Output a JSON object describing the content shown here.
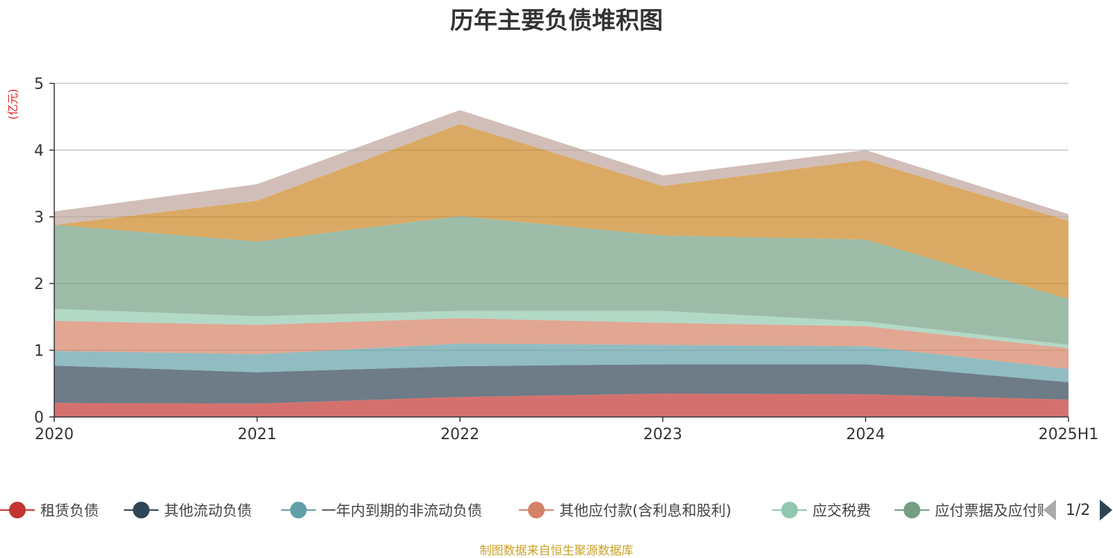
{
  "title": "历年主要负债堆积图",
  "unit": "(亿元)",
  "source_note": "制图数据来自恒生聚源数据库",
  "legend_page": "1/2",
  "chart_data": {
    "type": "area",
    "stacked": true,
    "categories": [
      "2020",
      "2021",
      "2022",
      "2023",
      "2024",
      "2025H1"
    ],
    "ylim": [
      0,
      5
    ],
    "yticks": [
      0,
      1,
      2,
      3,
      4,
      5
    ],
    "ylabel": "(亿元)",
    "grid": true,
    "legend_position": "bottom",
    "series": [
      {
        "name": "租赁负债",
        "color": "#c23531",
        "values": [
          0.21,
          0.2,
          0.3,
          0.35,
          0.34,
          0.26
        ]
      },
      {
        "name": "其他流动负债",
        "color": "#2f4554",
        "values": [
          0.56,
          0.47,
          0.46,
          0.44,
          0.45,
          0.26
        ]
      },
      {
        "name": "一年内到期的非流动负债",
        "color": "#61a0a8",
        "values": [
          0.22,
          0.27,
          0.34,
          0.29,
          0.27,
          0.2
        ]
      },
      {
        "name": "其他应付款(含利息和股利)",
        "color": "#d48265",
        "values": [
          0.45,
          0.44,
          0.38,
          0.33,
          0.3,
          0.31
        ]
      },
      {
        "name": "应交税费",
        "color": "#91c7ae",
        "values": [
          0.18,
          0.13,
          0.11,
          0.18,
          0.07,
          0.05
        ]
      },
      {
        "name": "应付票据及应付账款",
        "color": "#749f83",
        "values": [
          1.26,
          1.12,
          1.42,
          1.13,
          1.23,
          0.69
        ]
      },
      {
        "values": [
          0.0,
          0.61,
          1.38,
          0.74,
          1.19,
          1.17
        ],
        "color": "#ca8622"
      },
      {
        "values": [
          0.2,
          0.25,
          0.21,
          0.16,
          0.15,
          0.1
        ],
        "color": "#bda29a"
      }
    ]
  }
}
